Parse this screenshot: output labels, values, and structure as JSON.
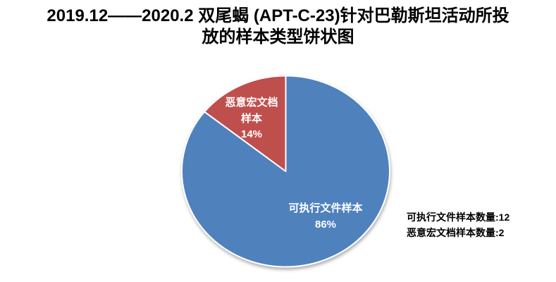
{
  "chart_data": {
    "type": "pie",
    "title": "2019.12——2020.2 双尾蝎 (APT-C-23)针对巴勒斯坦活动所投放的样本类型饼状图",
    "title_lines": [
      "2019.12——2020.2 双尾蝎 (APT-C-23)针对巴勒斯坦活动所投",
      "放的样本类型饼状图"
    ],
    "slices": [
      {
        "label": "可执行文件样本",
        "label_lines": [
          "可执行文件样本"
        ],
        "value": 12,
        "percent_label": "86%",
        "color": "#4f81bd"
      },
      {
        "label": "恶意宏文档样本",
        "label_lines": [
          "恶意宏文档",
          "样本"
        ],
        "value": 2,
        "percent_label": "14%",
        "color": "#bf504d"
      }
    ],
    "start_angle_deg": 0,
    "direction": "clockwise",
    "slice_label_color": "#ffffff",
    "slice_border_color": "#ffffff",
    "legend_position": "none"
  },
  "side_stats": [
    "可执行文件样本数量:12",
    "恶意宏文档样本数量:2"
  ]
}
